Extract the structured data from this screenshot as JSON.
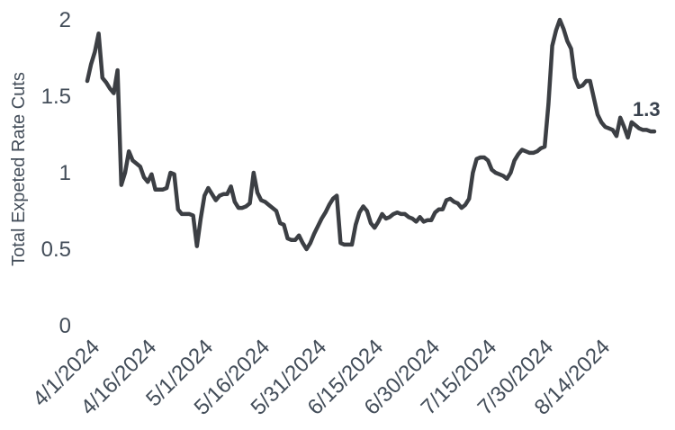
{
  "page": {
    "background": "#ffffff"
  },
  "chart": {
    "ylabel": "Total Expeted Rate Cuts",
    "annotation_label": "1.3",
    "colors": {
      "line": "#3c3f44",
      "tick_text": "#434d59",
      "axis_title_text": "#434d59",
      "annotation_text": "#39424e"
    }
  },
  "chart_data": {
    "type": "line",
    "title": "",
    "xlabel": "",
    "ylabel": "Total Expeted Rate Cuts",
    "ylim": [
      0,
      2
    ],
    "grid": false,
    "legend": "none",
    "y_ticks": [
      2,
      1.5,
      1,
      0.5,
      0
    ],
    "y_tick_labels": [
      "2",
      "1.5",
      "1",
      "0.5",
      "0"
    ],
    "x_tick_labels": [
      "4/1/2024",
      "4/16/2024",
      "5/1/2024",
      "5/16/2024",
      "5/31/2024",
      "6/15/2024",
      "6/30/2024",
      "7/15/2024",
      "7/30/2024",
      "8/14/2024"
    ],
    "x_start_date": "4/1/2024",
    "x_frequency": "daily",
    "x_tick_interval_points": 15,
    "end_annotation": {
      "text": "1.3",
      "value": 1.3
    },
    "series": [
      {
        "name": "Total Expected Rate Cuts",
        "values": [
          1.6,
          1.71,
          1.79,
          1.91,
          1.62,
          1.59,
          1.55,
          1.52,
          1.67,
          0.92,
          1.0,
          1.14,
          1.08,
          1.06,
          1.04,
          0.97,
          0.94,
          0.99,
          0.89,
          0.89,
          0.89,
          0.9,
          1.0,
          0.99,
          0.76,
          0.73,
          0.73,
          0.73,
          0.72,
          0.52,
          0.7,
          0.85,
          0.9,
          0.86,
          0.82,
          0.85,
          0.86,
          0.86,
          0.91,
          0.81,
          0.77,
          0.77,
          0.78,
          0.8,
          1.0,
          0.87,
          0.82,
          0.81,
          0.79,
          0.77,
          0.75,
          0.67,
          0.66,
          0.57,
          0.56,
          0.56,
          0.59,
          0.54,
          0.5,
          0.54,
          0.6,
          0.65,
          0.7,
          0.74,
          0.79,
          0.83,
          0.85,
          0.54,
          0.53,
          0.53,
          0.53,
          0.66,
          0.74,
          0.78,
          0.75,
          0.67,
          0.64,
          0.68,
          0.73,
          0.7,
          0.71,
          0.73,
          0.74,
          0.73,
          0.73,
          0.71,
          0.7,
          0.68,
          0.71,
          0.68,
          0.69,
          0.69,
          0.74,
          0.76,
          0.76,
          0.82,
          0.83,
          0.81,
          0.8,
          0.77,
          0.79,
          0.83,
          1.0,
          1.09,
          1.1,
          1.1,
          1.08,
          1.02,
          1.0,
          0.99,
          0.98,
          0.96,
          1.0,
          1.08,
          1.12,
          1.15,
          1.14,
          1.13,
          1.13,
          1.14,
          1.16,
          1.17,
          1.45,
          1.83,
          1.93,
          2.0,
          1.94,
          1.86,
          1.81,
          1.62,
          1.56,
          1.57,
          1.6,
          1.6,
          1.49,
          1.38,
          1.33,
          1.3,
          1.29,
          1.28,
          1.24,
          1.36,
          1.3,
          1.23,
          1.33,
          1.31,
          1.29,
          1.28,
          1.28,
          1.27,
          1.27
        ]
      }
    ]
  }
}
